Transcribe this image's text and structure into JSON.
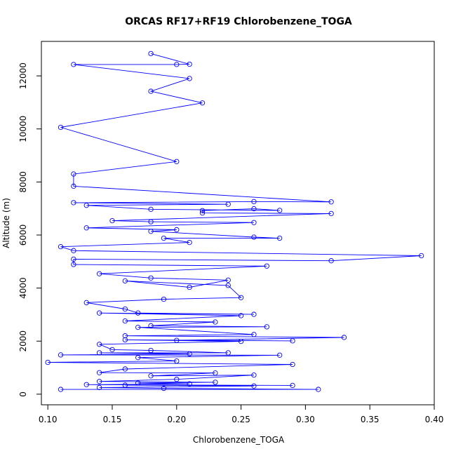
{
  "chart_data": {
    "type": "line",
    "title": "ORCAS RF17+RF19 Chlorobenzene_TOGA",
    "xlabel": "Chlorobenzene_TOGA",
    "ylabel": "Altitude (m)",
    "xlim": [
      0.095,
      0.4
    ],
    "ylim": [
      -400,
      13300
    ],
    "x_ticks": [
      "0.10",
      "0.15",
      "0.20",
      "0.25",
      "0.30",
      "0.35",
      "0.40"
    ],
    "y_ticks": [
      "0",
      "2000",
      "4000",
      "6000",
      "8000",
      "10000",
      "12000"
    ],
    "grid": false,
    "legend": "none",
    "series": [
      {
        "color": "#0000ff",
        "marker": "open-circle",
        "points": [
          [
            0.11,
            180
          ],
          [
            0.31,
            180
          ],
          [
            0.19,
            220
          ],
          [
            0.14,
            250
          ],
          [
            0.26,
            310
          ],
          [
            0.16,
            340
          ],
          [
            0.29,
            330
          ],
          [
            0.13,
            360
          ],
          [
            0.21,
            390
          ],
          [
            0.17,
            420
          ],
          [
            0.23,
            450
          ],
          [
            0.14,
            480
          ],
          [
            0.2,
            560
          ],
          [
            0.26,
            720
          ],
          [
            0.18,
            690
          ],
          [
            0.23,
            800
          ],
          [
            0.14,
            810
          ],
          [
            0.16,
            950
          ],
          [
            0.29,
            1120
          ],
          [
            0.1,
            1200
          ],
          [
            0.2,
            1250
          ],
          [
            0.17,
            1380
          ],
          [
            0.28,
            1470
          ],
          [
            0.11,
            1480
          ],
          [
            0.21,
            1520
          ],
          [
            0.14,
            1560
          ],
          [
            0.24,
            1560
          ],
          [
            0.18,
            1650
          ],
          [
            0.15,
            1680
          ],
          [
            0.14,
            1880
          ],
          [
            0.25,
            1990
          ],
          [
            0.16,
            2050
          ],
          [
            0.29,
            2010
          ],
          [
            0.2,
            2030
          ],
          [
            0.33,
            2140
          ],
          [
            0.16,
            2200
          ],
          [
            0.26,
            2250
          ],
          [
            0.17,
            2520
          ],
          [
            0.27,
            2540
          ],
          [
            0.18,
            2580
          ],
          [
            0.23,
            2720
          ],
          [
            0.16,
            2760
          ],
          [
            0.25,
            2960
          ],
          [
            0.14,
            3060
          ],
          [
            0.26,
            3010
          ],
          [
            0.17,
            3060
          ],
          [
            0.16,
            3210
          ],
          [
            0.13,
            3450
          ],
          [
            0.19,
            3580
          ],
          [
            0.25,
            3640
          ],
          [
            0.24,
            4100
          ],
          [
            0.16,
            4270
          ],
          [
            0.21,
            4030
          ],
          [
            0.24,
            4300
          ],
          [
            0.18,
            4380
          ],
          [
            0.14,
            4540
          ],
          [
            0.27,
            4830
          ],
          [
            0.12,
            4890
          ],
          [
            0.12,
            5090
          ],
          [
            0.32,
            5030
          ],
          [
            0.39,
            5220
          ],
          [
            0.12,
            5410
          ],
          [
            0.11,
            5560
          ],
          [
            0.21,
            5720
          ],
          [
            0.19,
            5880
          ],
          [
            0.28,
            5880
          ],
          [
            0.26,
            5920
          ],
          [
            0.18,
            6140
          ],
          [
            0.2,
            6200
          ],
          [
            0.13,
            6270
          ],
          [
            0.26,
            6470
          ],
          [
            0.18,
            6500
          ],
          [
            0.15,
            6540
          ],
          [
            0.32,
            6810
          ],
          [
            0.22,
            6830
          ],
          [
            0.22,
            6920
          ],
          [
            0.26,
            6990
          ],
          [
            0.28,
            6930
          ],
          [
            0.18,
            6970
          ],
          [
            0.13,
            7120
          ],
          [
            0.24,
            7160
          ],
          [
            0.12,
            7220
          ],
          [
            0.26,
            7260
          ],
          [
            0.32,
            7250
          ],
          [
            0.12,
            7840
          ],
          [
            0.12,
            8300
          ],
          [
            0.2,
            8770
          ],
          [
            0.11,
            10060
          ],
          [
            0.22,
            10980
          ],
          [
            0.18,
            11420
          ],
          [
            0.21,
            11900
          ],
          [
            0.12,
            12430
          ],
          [
            0.2,
            12430
          ],
          [
            0.21,
            12440
          ],
          [
            0.18,
            12840
          ]
        ]
      }
    ]
  }
}
